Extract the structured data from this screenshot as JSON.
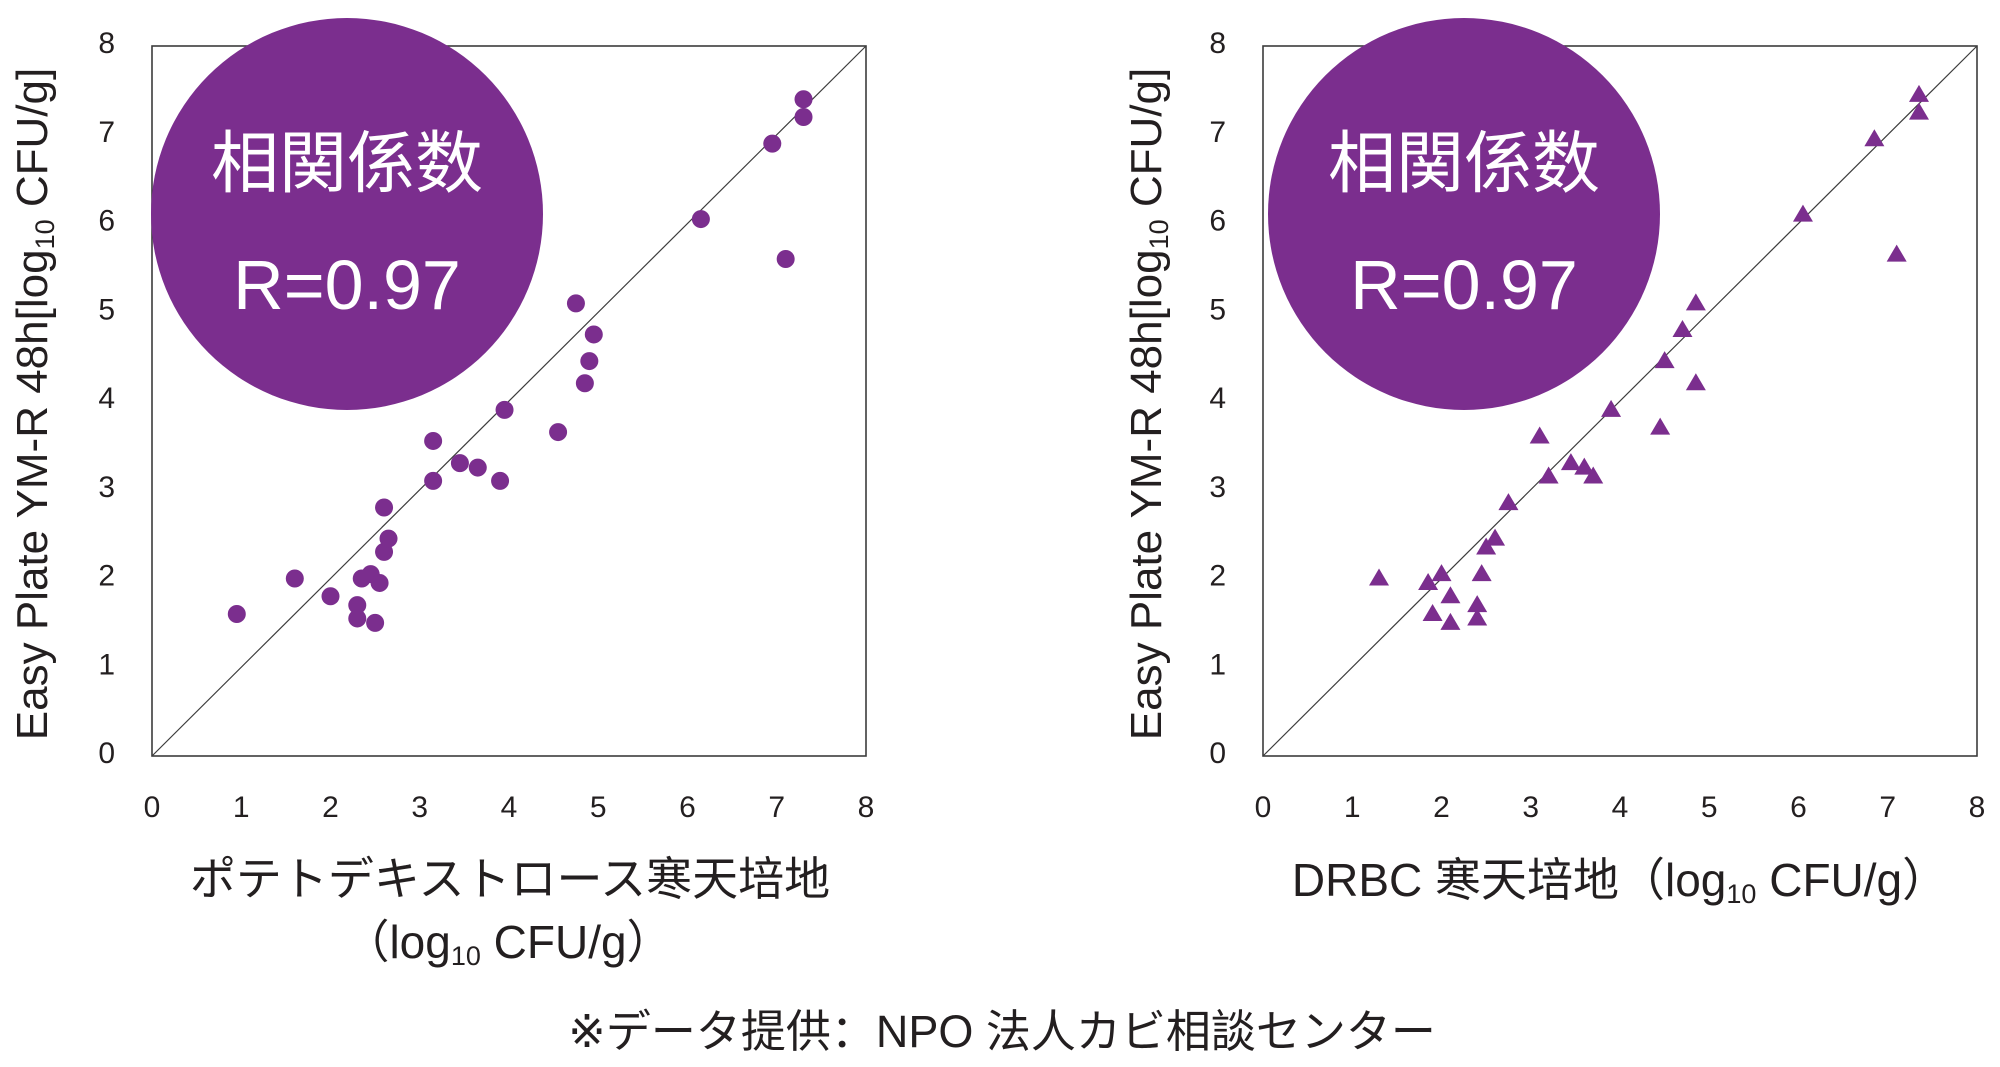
{
  "colors": {
    "accent": "#7b2e8e",
    "text": "#231f20",
    "frame": "#3c3c3c",
    "badge_text": "#ffffff"
  },
  "chart_data": [
    {
      "type": "scatter",
      "marker_shape": "circle",
      "color": "#7b2e8e",
      "xlabel": {
        "line1": "ポテトデキストロース寒天培地",
        "line2": {
          "text": "（log",
          "sub": "10",
          "tail": " CFU/g）"
        }
      },
      "ylabel": {
        "text": "Easy Plate YM-R 48h[log",
        "sub": "10",
        "tail": " CFU/g]"
      },
      "xlim": [
        0,
        8
      ],
      "ylim": [
        0,
        8
      ],
      "xticks": [
        0,
        1,
        2,
        3,
        4,
        5,
        6,
        7,
        8
      ],
      "yticks": [
        0,
        1,
        2,
        3,
        4,
        5,
        6,
        7,
        8
      ],
      "grid": false,
      "legend": false,
      "reference_line": {
        "x": [
          0,
          8
        ],
        "y": [
          0,
          8
        ]
      },
      "annotation": {
        "label": "相関係数",
        "value": "R=0.97"
      },
      "x": [
        0.95,
        1.6,
        2.0,
        2.3,
        2.3,
        2.35,
        2.45,
        2.5,
        2.55,
        2.6,
        2.65,
        2.6,
        3.15,
        3.15,
        3.45,
        3.65,
        3.9,
        3.95,
        4.55,
        4.75,
        4.85,
        4.9,
        4.95,
        6.15,
        6.95,
        7.1,
        7.3,
        7.3
      ],
      "y": [
        1.6,
        2.0,
        1.8,
        1.55,
        1.7,
        2.0,
        2.05,
        1.5,
        1.95,
        2.3,
        2.45,
        2.8,
        3.55,
        3.1,
        3.3,
        3.25,
        3.1,
        3.9,
        3.65,
        5.1,
        4.2,
        4.45,
        4.75,
        6.05,
        6.9,
        5.6,
        7.4,
        7.2
      ]
    },
    {
      "type": "scatter",
      "marker_shape": "triangle",
      "color": "#7b2e8e",
      "xlabel": {
        "text": "DRBC 寒天培地（log",
        "sub": "10",
        "tail": " CFU/g）"
      },
      "ylabel": {
        "text": "Easy Plate YM-R 48h[log",
        "sub": "10",
        "tail": " CFU/g]"
      },
      "xlim": [
        0,
        8
      ],
      "ylim": [
        0,
        8
      ],
      "xticks": [
        0,
        1,
        2,
        3,
        4,
        5,
        6,
        7,
        8
      ],
      "yticks": [
        0,
        1,
        2,
        3,
        4,
        5,
        6,
        7,
        8
      ],
      "grid": false,
      "legend": false,
      "reference_line": {
        "x": [
          0,
          8
        ],
        "y": [
          0,
          8
        ]
      },
      "annotation": {
        "label": "相関係数",
        "value": "R=0.97"
      },
      "x": [
        1.3,
        1.85,
        1.9,
        2.0,
        2.1,
        2.1,
        2.4,
        2.4,
        2.45,
        2.5,
        2.6,
        2.75,
        3.1,
        3.2,
        3.45,
        3.6,
        3.7,
        3.9,
        4.45,
        4.5,
        4.7,
        4.85,
        4.85,
        6.05,
        6.85,
        7.1,
        7.35,
        7.35
      ],
      "y": [
        2.0,
        1.95,
        1.6,
        2.05,
        1.8,
        1.5,
        1.55,
        1.7,
        2.05,
        2.35,
        2.45,
        2.85,
        3.6,
        3.15,
        3.3,
        3.25,
        3.15,
        3.9,
        3.7,
        4.45,
        4.8,
        5.1,
        4.2,
        6.1,
        6.95,
        5.65,
        7.45,
        7.25
      ]
    }
  ],
  "footer": {
    "note": "※データ提供：NPO 法人カビ相談センター"
  }
}
